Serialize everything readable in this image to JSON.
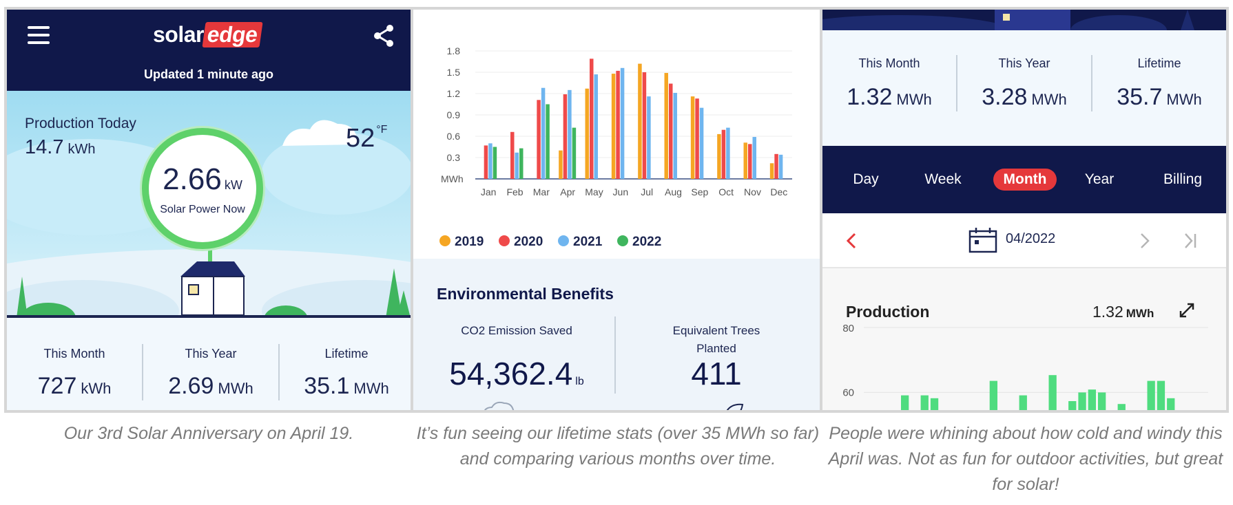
{
  "panel1": {
    "logo": {
      "solar": "solar",
      "edge": "edge"
    },
    "updated": "Updated 1 minute ago",
    "production_today": {
      "label": "Production Today",
      "value": "14.7",
      "unit": "kWh"
    },
    "temperature": {
      "value": "52",
      "unit": "°F"
    },
    "power_now": {
      "value": "2.66",
      "unit": "kW",
      "label": "Solar Power Now"
    },
    "stats": [
      {
        "label": "This Month",
        "value": "727",
        "unit": "kWh"
      },
      {
        "label": "This Year",
        "value": "2.69",
        "unit": "MWh"
      },
      {
        "label": "Lifetime",
        "value": "35.1",
        "unit": "MWh"
      }
    ]
  },
  "panel2": {
    "chart_data": {
      "type": "bar",
      "ylabel": "MWh",
      "ylim": [
        0,
        1.8
      ],
      "yticks": [
        "0.3",
        "0.6",
        "0.9",
        "1.2",
        "1.5",
        "1.8"
      ],
      "categories": [
        "Jan",
        "Feb",
        "Mar",
        "Apr",
        "May",
        "Jun",
        "Jul",
        "Aug",
        "Sep",
        "Oct",
        "Nov",
        "Dec"
      ],
      "series": [
        {
          "name": "2019",
          "color": "#f5a623",
          "values": [
            0,
            0,
            0,
            0.4,
            1.27,
            1.48,
            1.62,
            1.49,
            1.16,
            0.63,
            0.51,
            0.22
          ]
        },
        {
          "name": "2020",
          "color": "#ef4a4a",
          "values": [
            0.47,
            0.66,
            1.11,
            1.19,
            1.69,
            1.52,
            1.5,
            1.34,
            1.13,
            0.69,
            0.49,
            0.35
          ]
        },
        {
          "name": "2021",
          "color": "#6fb5ef",
          "values": [
            0.5,
            0.37,
            1.28,
            1.25,
            1.47,
            1.56,
            1.16,
            1.21,
            1.0,
            0.72,
            0.59,
            0.34
          ]
        },
        {
          "name": "2022",
          "color": "#3fb55e",
          "values": [
            0.45,
            0.43,
            1.05,
            0.72,
            0,
            0,
            0,
            0,
            0,
            0,
            0,
            0
          ]
        }
      ]
    },
    "env": {
      "title": "Environmental Benefits",
      "co2_label": "CO2 Emission Saved",
      "co2_value": "54,362.4",
      "co2_unit": "lb",
      "trees_label_1": "Equivalent Trees",
      "trees_label_2": "Planted",
      "trees_value": "411"
    }
  },
  "panel3": {
    "stats": [
      {
        "label": "This Month",
        "value": "1.32",
        "unit": "MWh"
      },
      {
        "label": "This Year",
        "value": "3.28",
        "unit": "MWh"
      },
      {
        "label": "Lifetime",
        "value": "35.7",
        "unit": "MWh"
      }
    ],
    "tabs": [
      "Day",
      "Week",
      "Month",
      "Year",
      "Billing"
    ],
    "active_tab": "Month",
    "date": "04/2022",
    "production": {
      "title": "Production",
      "value": "1.32",
      "unit": "MWh"
    },
    "daily_chart": {
      "type": "bar",
      "yticks": [
        "80",
        "60"
      ],
      "color": "#4fdc7f",
      "visible_values": [
        59,
        0,
        59,
        58,
        0,
        0,
        0,
        0,
        0,
        64,
        0,
        0,
        59,
        0,
        0,
        66,
        0,
        57,
        60,
        61,
        60,
        0,
        56,
        0,
        0,
        64,
        64,
        58
      ]
    }
  },
  "captions": [
    "Our 3rd Solar Anniversary on April 19.",
    "It’s fun seeing our lifetime stats (over 35 MWh so far) and comparing various months over time.",
    "People were whining about how cold and windy this April was. Not as fun for outdoor activities, but great for solar!"
  ]
}
